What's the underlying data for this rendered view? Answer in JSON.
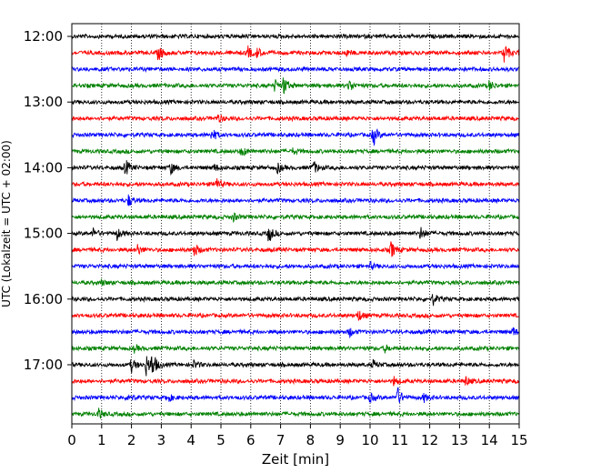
{
  "chart_data": {
    "type": "line",
    "subtype": "helicorder",
    "xlabel": "Zeit  [min]",
    "ylabel": "UTC (Lokalzeit = UTC + 02:00)",
    "xlim": [
      0,
      15
    ],
    "x_ticks": [
      "0",
      "1",
      "2",
      "3",
      "4",
      "5",
      "6",
      "7",
      "8",
      "9",
      "10",
      "11",
      "12",
      "13",
      "14",
      "15"
    ],
    "y_ticks": [
      "12:00",
      "13:00",
      "14:00",
      "15:00",
      "16:00",
      "17:00"
    ],
    "grid": "vertical-dotted",
    "trace_color_cycle": [
      "#000000",
      "#ff0000",
      "#0000ff",
      "#008000"
    ],
    "traces": [
      {
        "start": "12:00",
        "color": "#000000",
        "events": []
      },
      {
        "start": "12:15",
        "color": "#ff0000",
        "events": [
          [
            2.9,
            1.0
          ],
          [
            5.9,
            0.7
          ],
          [
            6.2,
            0.6
          ],
          [
            9.2,
            0.4
          ],
          [
            14.5,
            1.3
          ]
        ]
      },
      {
        "start": "12:30",
        "color": "#0000ff",
        "events": []
      },
      {
        "start": "12:45",
        "color": "#008000",
        "events": [
          [
            6.8,
            0.7
          ],
          [
            7.1,
            1.1
          ],
          [
            9.3,
            0.8
          ],
          [
            14.0,
            0.6
          ]
        ]
      },
      {
        "start": "13:00",
        "color": "#000000",
        "events": []
      },
      {
        "start": "13:15",
        "color": "#ff0000",
        "events": [
          [
            4.9,
            0.5
          ]
        ]
      },
      {
        "start": "13:30",
        "color": "#0000ff",
        "events": [
          [
            4.7,
            0.8
          ],
          [
            10.1,
            1.3
          ]
        ]
      },
      {
        "start": "13:45",
        "color": "#008000",
        "events": [
          [
            5.7,
            0.6
          ],
          [
            7.4,
            0.3
          ]
        ]
      },
      {
        "start": "14:00",
        "color": "#000000",
        "events": [
          [
            1.8,
            1.0
          ],
          [
            3.3,
            0.8
          ],
          [
            4.8,
            0.4
          ],
          [
            6.9,
            0.6
          ],
          [
            8.1,
            0.8
          ]
        ]
      },
      {
        "start": "14:15",
        "color": "#ff0000",
        "events": [
          [
            4.8,
            1.0
          ]
        ]
      },
      {
        "start": "14:30",
        "color": "#0000ff",
        "events": [
          [
            1.9,
            0.7
          ]
        ]
      },
      {
        "start": "14:45",
        "color": "#008000",
        "events": [
          [
            5.4,
            0.5
          ]
        ]
      },
      {
        "start": "15:00",
        "color": "#000000",
        "events": [
          [
            0.7,
            0.6
          ],
          [
            1.5,
            0.8
          ],
          [
            6.6,
            1.1
          ],
          [
            11.7,
            0.8
          ]
        ]
      },
      {
        "start": "15:15",
        "color": "#ff0000",
        "events": [
          [
            2.2,
            0.6
          ],
          [
            4.1,
            0.9
          ],
          [
            10.7,
            1.0
          ]
        ]
      },
      {
        "start": "15:30",
        "color": "#0000ff",
        "events": [
          [
            10.0,
            0.4
          ]
        ]
      },
      {
        "start": "15:45",
        "color": "#008000",
        "events": [
          [
            1.0,
            0.3
          ]
        ]
      },
      {
        "start": "16:00",
        "color": "#000000",
        "events": [
          [
            12.1,
            0.7
          ]
        ]
      },
      {
        "start": "16:15",
        "color": "#ff0000",
        "events": [
          [
            9.6,
            0.7
          ]
        ]
      },
      {
        "start": "16:30",
        "color": "#0000ff",
        "events": [
          [
            9.3,
            0.6
          ],
          [
            14.8,
            0.5
          ]
        ]
      },
      {
        "start": "16:45",
        "color": "#008000",
        "events": [
          [
            2.1,
            0.4
          ],
          [
            10.5,
            0.4
          ]
        ]
      },
      {
        "start": "17:00",
        "color": "#000000",
        "events": [
          [
            2.0,
            0.8
          ],
          [
            2.5,
            1.3
          ],
          [
            2.7,
            1.4
          ],
          [
            4.1,
            0.5
          ],
          [
            10.1,
            0.5
          ]
        ]
      },
      {
        "start": "17:15",
        "color": "#ff0000",
        "events": [
          [
            10.8,
            0.5
          ],
          [
            13.2,
            0.6
          ]
        ]
      },
      {
        "start": "17:30",
        "color": "#0000ff",
        "events": [
          [
            1.9,
            0.5
          ],
          [
            3.2,
            0.6
          ],
          [
            10.0,
            0.5
          ],
          [
            10.9,
            1.4
          ],
          [
            11.8,
            0.5
          ]
        ]
      },
      {
        "start": "17:45",
        "color": "#008000",
        "events": [
          [
            0.9,
            0.6
          ]
        ]
      }
    ]
  }
}
